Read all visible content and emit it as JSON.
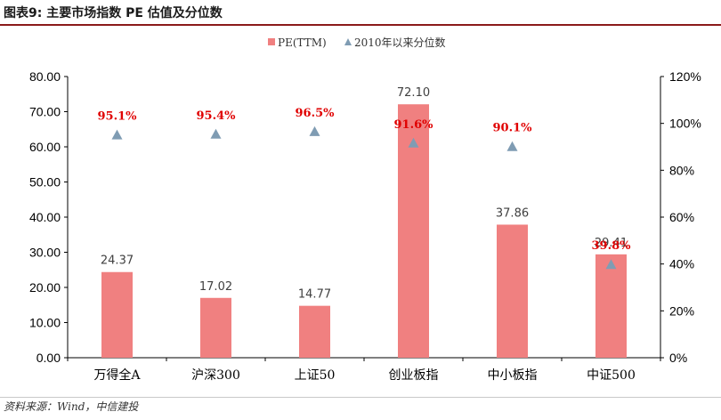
{
  "title": "图表9:    主要市场指数 PE 估值及分位数",
  "source": "资料来源：Wind，中信建投",
  "colors": {
    "bar": "#f08080",
    "marker": "#7f9cb3",
    "percent_label": "#e00000",
    "axis": "#000000",
    "title_rule": "#8b1a1a"
  },
  "chart_data": {
    "type": "bar",
    "categories": [
      "万得全A",
      "沪深300",
      "上证50",
      "创业板指",
      "中小板指",
      "中证500"
    ],
    "series": [
      {
        "name": "PE(TTM)",
        "kind": "bar",
        "axis": "left",
        "values": [
          24.37,
          17.02,
          14.77,
          72.1,
          37.86,
          29.41
        ],
        "labels": [
          "24.37",
          "17.02",
          "14.77",
          "72.10",
          "37.86",
          "29.41"
        ]
      },
      {
        "name": "2010年以来分位数",
        "kind": "marker",
        "axis": "right",
        "values": [
          95.1,
          95.4,
          96.5,
          91.6,
          90.1,
          39.8
        ],
        "labels": [
          "95.1%",
          "95.4%",
          "96.5%",
          "91.6%",
          "90.1%",
          "39.8%"
        ]
      }
    ],
    "y_left": {
      "ylim": [
        0,
        80
      ],
      "ticks": [
        "0.00",
        "10.00",
        "20.00",
        "30.00",
        "40.00",
        "50.00",
        "60.00",
        "70.00",
        "80.00"
      ]
    },
    "y_right": {
      "ylim": [
        0,
        120
      ],
      "ticks": [
        "0%",
        "20%",
        "40%",
        "60%",
        "80%",
        "100%",
        "120%"
      ]
    },
    "legend_position": "top-center",
    "grid": false
  }
}
